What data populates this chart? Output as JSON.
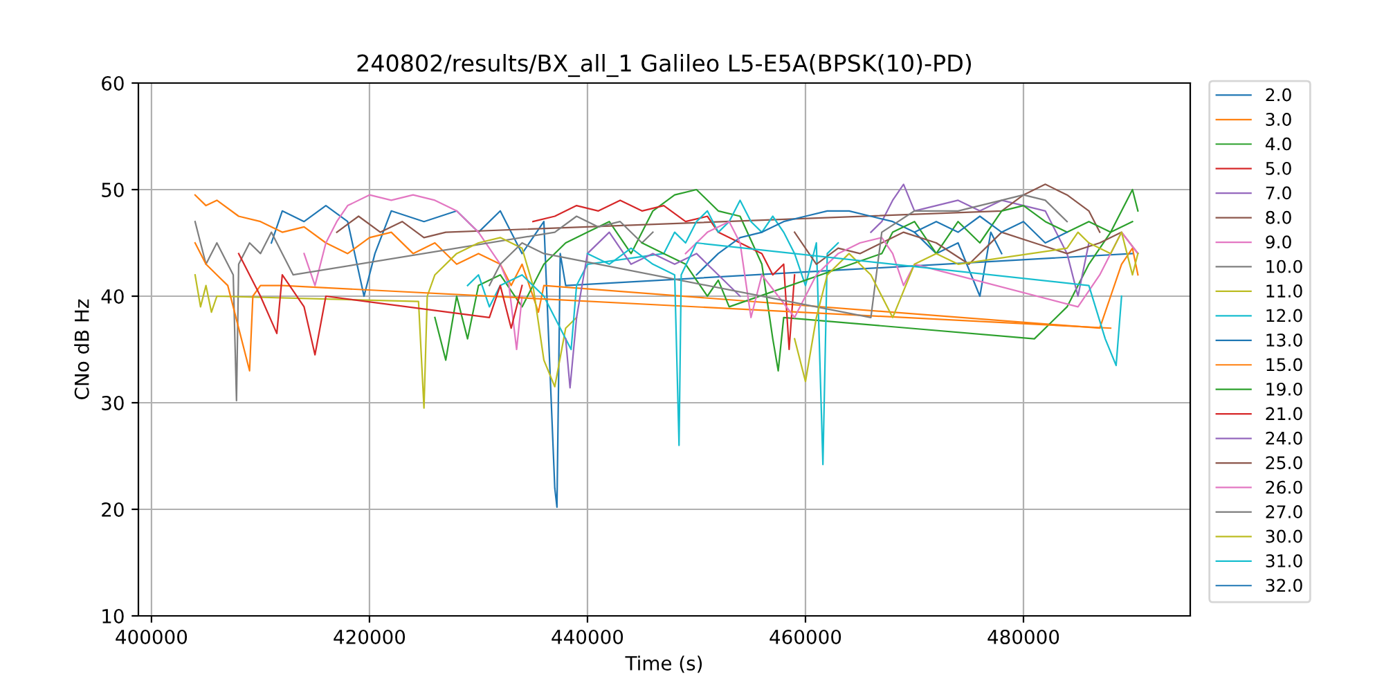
{
  "chart_data": {
    "type": "line",
    "title": "240802/results/BX_all_1 Galileo L5-E5A(BPSK(10)-PD)",
    "xlabel": "Time (s)",
    "ylabel": "CNo dB Hz",
    "xlim": [
      398800,
      495300
    ],
    "ylim": [
      10,
      60
    ],
    "xticks": [
      400000,
      420000,
      440000,
      460000,
      480000
    ],
    "yticks": [
      10,
      20,
      30,
      40,
      50,
      60
    ],
    "grid": true,
    "legend": "right",
    "series": [
      {
        "name": "2.0",
        "color": "#1f77b4",
        "x": [
          411000,
          412000,
          414000,
          416000,
          418000,
          419500,
          420500,
          422000,
          425000,
          428000,
          430000,
          432000,
          434000,
          436000,
          437000,
          437200,
          437500,
          438000,
          490000
        ],
        "values": [
          45,
          48,
          47,
          48.5,
          47,
          40,
          44,
          48,
          47,
          48,
          46,
          48,
          44,
          47,
          22,
          20.2,
          44,
          41,
          44
        ]
      },
      {
        "name": "3.0",
        "color": "#ff7f0e",
        "x": [
          404000,
          405000,
          406000,
          408000,
          410000,
          412000,
          414000,
          416000,
          418000,
          420000,
          422000,
          424000,
          426000,
          428000,
          430000,
          432000,
          433000,
          434000,
          435000,
          435500,
          436000,
          487000,
          488000,
          489000,
          490000,
          490500
        ],
        "values": [
          49.5,
          48.5,
          49,
          47.5,
          47,
          46,
          46.5,
          45,
          44,
          45.5,
          46,
          44,
          45,
          43,
          44,
          43,
          41,
          43,
          40,
          38.5,
          41,
          37,
          40,
          43,
          44.5,
          42
        ]
      },
      {
        "name": "4.0",
        "color": "#2ca02c",
        "x": [
          426000,
          427000,
          428000,
          429000,
          430000,
          432000,
          434000,
          436000,
          438000,
          440000,
          442000,
          444000,
          446000,
          448000,
          450000,
          452000,
          454000,
          456000,
          457000,
          457500,
          458000,
          481000,
          482000,
          484000,
          486000,
          488000,
          489000,
          490000,
          490500
        ],
        "values": [
          38,
          34,
          40,
          36,
          41,
          42,
          39,
          43,
          45,
          46,
          47,
          44,
          48,
          49.5,
          50,
          48,
          47.5,
          43,
          36,
          33,
          38,
          36,
          37,
          39,
          43,
          46,
          48,
          50,
          48
        ]
      },
      {
        "name": "5.0",
        "color": "#d62728",
        "x": [
          435000,
          437000,
          439000,
          441000,
          443000,
          445000,
          447000,
          449000,
          451000,
          452000,
          454000,
          456000,
          457000,
          458000,
          458500,
          459000
        ],
        "values": [
          47,
          47.5,
          48.5,
          48,
          49,
          48,
          48.5,
          47,
          47.5,
          46,
          45,
          44,
          42,
          43,
          35,
          42
        ]
      },
      {
        "name": "7.0",
        "color": "#9467bd",
        "x": [
          466000,
          467000,
          468000,
          469000,
          470000,
          472000,
          474000,
          476000,
          478000,
          480000,
          482000,
          484000,
          485000,
          486000
        ],
        "values": [
          46,
          47,
          49,
          50.5,
          48,
          48.5,
          49,
          48,
          49,
          48.5,
          48,
          44,
          40,
          45
        ]
      },
      {
        "name": "8.0",
        "color": "#8c564b",
        "x": [
          417000,
          419000,
          421000,
          423000,
          425000,
          427000,
          478000,
          480000,
          482000,
          484000,
          486000,
          487000
        ],
        "values": [
          46,
          47.5,
          46,
          47,
          45.5,
          46,
          48,
          49.5,
          50.5,
          49.5,
          48,
          46
        ]
      },
      {
        "name": "9.0",
        "color": "#e377c2",
        "x": [
          414000,
          415000,
          416000,
          417000,
          418000,
          420000,
          422000,
          424000,
          426000,
          428000,
          430000,
          432000,
          432800,
          433500,
          434000
        ],
        "values": [
          44,
          41,
          45,
          47,
          48.5,
          49.5,
          49,
          49.5,
          49,
          48,
          46,
          43,
          41,
          35,
          40
        ]
      },
      {
        "name": "10.0",
        "color": "#7f7f7f",
        "x": [
          404000,
          405000,
          406000,
          407500,
          407800,
          408000,
          409000,
          410000,
          411000,
          412000,
          413000,
          437000,
          439000,
          441000,
          443000,
          445000,
          446000
        ],
        "values": [
          47,
          43,
          45,
          42,
          30.2,
          43,
          45,
          44,
          46,
          44,
          42,
          46,
          47.5,
          46.5,
          47,
          45,
          46
        ]
      },
      {
        "name": "11.0",
        "color": "#bcbd22",
        "x": [
          404000,
          404500,
          405000,
          405500,
          406000,
          424500,
          425000,
          425300,
          426000,
          428000,
          430000,
          432000,
          434000,
          435000,
          436000,
          437000,
          438000,
          439000
        ],
        "values": [
          42,
          39,
          41,
          38.5,
          40,
          39.5,
          29.5,
          40,
          42,
          44,
          45,
          45.5,
          44.5,
          41,
          34,
          31.5,
          37,
          38
        ]
      },
      {
        "name": "12.0",
        "color": "#17becf",
        "x": [
          429000,
          430000,
          431000,
          432000,
          434000,
          436000,
          437500,
          438500,
          439000,
          440000,
          447000,
          448000,
          449000,
          450000,
          451000,
          452000,
          453000,
          454000,
          455000,
          456000,
          457000,
          458000,
          459000,
          460000,
          461000,
          461600,
          462000,
          463000
        ],
        "values": [
          41,
          42,
          39,
          41,
          42,
          40,
          37,
          35,
          41,
          43,
          44,
          46,
          45,
          47,
          48,
          46,
          47,
          49,
          47,
          46,
          47.5,
          46,
          44,
          41,
          45,
          24.2,
          44,
          45
        ]
      },
      {
        "name": "13.0",
        "color": "#1f77b4",
        "x": [
          450000,
          452000,
          454000,
          456000,
          458000,
          460000,
          462000,
          464000,
          466000,
          468000,
          470000,
          472000,
          474000,
          476000,
          477000,
          478000
        ],
        "values": [
          42,
          44,
          45.5,
          46,
          47,
          47.5,
          48,
          48,
          47.5,
          47,
          46,
          44,
          45,
          40,
          46,
          44
        ]
      },
      {
        "name": "15.0",
        "color": "#ff7f0e",
        "x": [
          404000,
          405000,
          406000,
          407000,
          408000,
          409000,
          409300,
          410000,
          412000,
          488000
        ],
        "values": [
          45,
          43,
          42,
          41,
          37,
          33,
          40,
          41,
          41,
          37
        ]
      },
      {
        "name": "19.0",
        "color": "#2ca02c",
        "x": [
          445000,
          447000,
          449000,
          451000,
          452000,
          453000,
          467000,
          468000,
          470000,
          472000,
          474000,
          476000,
          478000,
          480000,
          482000,
          484000,
          486000,
          488000,
          490000
        ],
        "values": [
          45,
          44,
          43,
          40,
          41.5,
          39,
          44,
          46,
          47,
          44,
          47,
          45,
          48,
          48.5,
          47,
          46,
          47,
          46,
          47
        ]
      },
      {
        "name": "21.0",
        "color": "#d62728",
        "x": [
          408000,
          410000,
          411500,
          412000,
          414000,
          415000,
          416000,
          431000,
          432000,
          433000,
          434000
        ],
        "values": [
          44,
          40,
          36.5,
          42,
          39,
          34.5,
          40,
          38,
          41,
          37,
          41
        ]
      },
      {
        "name": "24.0",
        "color": "#9467bd",
        "x": [
          438000,
          438400,
          439000,
          440000,
          442000,
          444000,
          446000,
          448000,
          450000,
          452000,
          454000
        ],
        "values": [
          36,
          31.4,
          38,
          44,
          46,
          43,
          44,
          43,
          44,
          42,
          40
        ]
      },
      {
        "name": "25.0",
        "color": "#8c564b",
        "x": [
          459000,
          461000,
          463000,
          465000,
          467000,
          469000,
          472000,
          475000,
          478000,
          481000,
          484000,
          487000,
          489000,
          490500
        ],
        "values": [
          46,
          43,
          44.5,
          44,
          45,
          46,
          45,
          43,
          46,
          45,
          44,
          45,
          46,
          44
        ]
      },
      {
        "name": "26.0",
        "color": "#e377c2",
        "x": [
          449000,
          451000,
          453000,
          454000,
          455000,
          456000,
          459000,
          461000,
          463000,
          465000,
          467000,
          468000,
          469000,
          470000,
          485000,
          487000,
          489000,
          490500
        ],
        "values": [
          44,
          46,
          47,
          45,
          38,
          42,
          38,
          42,
          44,
          45,
          45.5,
          44,
          41,
          43,
          39,
          42,
          46,
          44
        ]
      },
      {
        "name": "27.0",
        "color": "#7f7f7f",
        "x": [
          431000,
          432000,
          434000,
          436000,
          466000,
          467000,
          470000,
          474000,
          478000,
          480000,
          482000,
          484000
        ],
        "values": [
          41,
          43,
          45,
          44,
          38,
          46,
          48,
          48,
          49,
          49.5,
          49,
          47
        ]
      },
      {
        "name": "30.0",
        "color": "#bcbd22",
        "x": [
          459000,
          460000,
          461000,
          462000,
          464000,
          466000,
          468000,
          470000,
          472000,
          474000,
          484000,
          485000,
          486000,
          488000,
          489000,
          490000,
          490500
        ],
        "values": [
          36,
          32,
          38,
          42,
          44,
          42,
          38,
          43,
          44,
          43,
          44.5,
          46,
          45,
          44,
          46,
          42,
          44
        ]
      },
      {
        "name": "31.0",
        "color": "#17becf",
        "x": [
          440000,
          442000,
          444000,
          446000,
          448000,
          448400,
          448600,
          450000,
          486000,
          487500,
          488500,
          489000
        ],
        "values": [
          44,
          43,
          44.5,
          43,
          42,
          26,
          42,
          45,
          41,
          36,
          33.5,
          40
        ]
      },
      {
        "name": "32.0",
        "color": "#1f77b4",
        "x": [
          470000,
          472000,
          474000,
          476000,
          478000,
          480000,
          482000,
          484000
        ],
        "values": [
          46,
          47,
          46,
          47.5,
          46,
          47,
          45,
          46
        ]
      }
    ]
  }
}
